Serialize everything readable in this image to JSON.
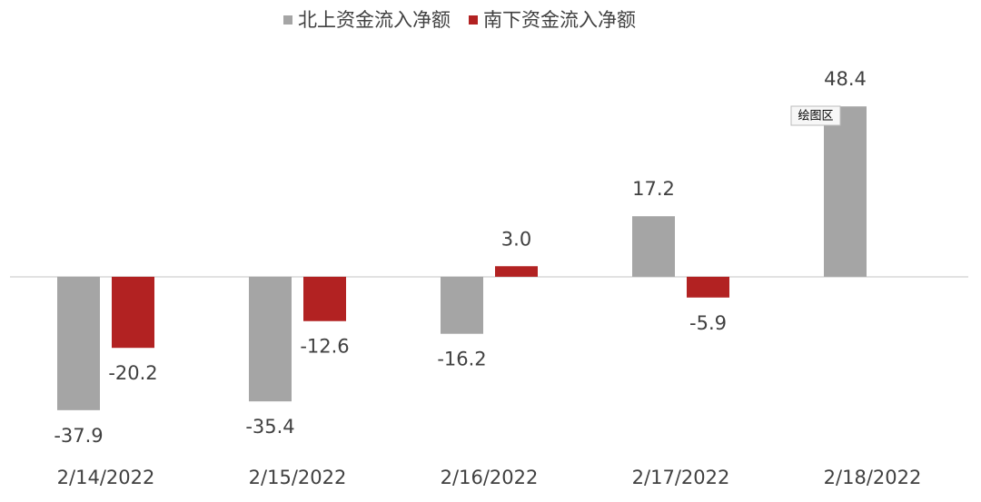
{
  "chart_data": {
    "type": "bar",
    "categories": [
      "2/14/2022",
      "2/15/2022",
      "2/16/2022",
      "2/17/2022",
      "2/18/2022"
    ],
    "series": [
      {
        "name": "北上资金流入净额",
        "color": "#a5a5a5",
        "values": [
          -37.9,
          -35.4,
          -16.2,
          17.2,
          48.4
        ]
      },
      {
        "name": "南下资金流入净额",
        "color": "#b22222",
        "values": [
          -20.2,
          -12.6,
          3.0,
          -5.9,
          null
        ],
        "value_labels": [
          "-20.2",
          "-12.6",
          "3.0",
          "-5.9",
          null
        ]
      }
    ],
    "ylim": [
      -40,
      50
    ],
    "legend": "top",
    "tooltip": "绘图区"
  }
}
